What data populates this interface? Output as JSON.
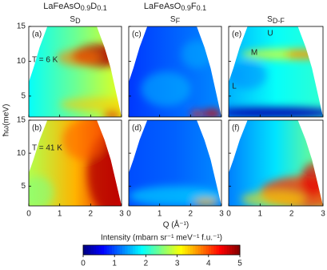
{
  "chart_data": {
    "type": "heatmap",
    "xlabel": "Q (Å⁻¹)",
    "ylabel": "ħω(meV)",
    "xlim": [
      0,
      3
    ],
    "xticks": [
      0,
      1,
      2,
      3
    ],
    "ylim": [
      2,
      15
    ],
    "yticks": [
      5,
      10,
      15
    ],
    "columns": [
      {
        "formula": [
          "LaFeAsO",
          "0.9",
          "D",
          "0.1"
        ],
        "symbol": [
          "S",
          "D"
        ]
      },
      {
        "formula": [
          "LaFeAsO",
          "0.9",
          "F",
          "0.1"
        ],
        "symbol": [
          "S",
          "F"
        ]
      },
      {
        "symbol": [
          "S",
          "D-F"
        ]
      }
    ],
    "panels": [
      {
        "label": "(a)",
        "annotations": [
          "T = 6 K"
        ]
      },
      {
        "label": "(c)"
      },
      {
        "label": "(e)",
        "annotations": [
          "U",
          "M",
          "L"
        ]
      },
      {
        "label": "(b)",
        "annotations": [
          "T = 41 K"
        ]
      },
      {
        "label": "(d)"
      },
      {
        "label": "(f)"
      }
    ],
    "colorbar": {
      "label": "Intensity (mbarn sr⁻¹ meV⁻¹ f.u.⁻¹)",
      "lim": [
        0,
        5
      ],
      "ticks": [
        0,
        1,
        2,
        3,
        4,
        5
      ],
      "colormap": "jet"
    }
  }
}
